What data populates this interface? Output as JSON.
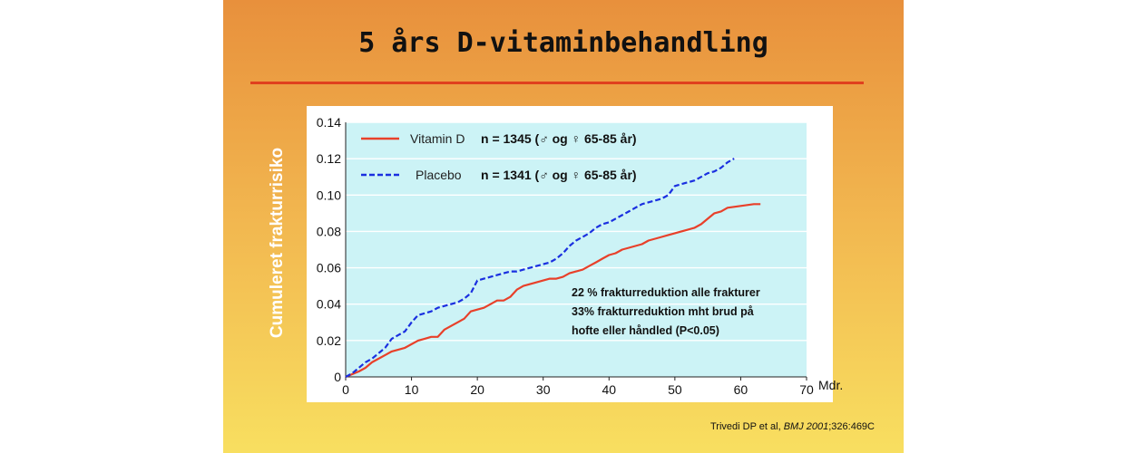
{
  "slide": {
    "title": "5 års D-vitaminbehandling",
    "y_axis_label": "Cumuleret frakturrisiko",
    "citation_author": "Trivedi DP et al, ",
    "citation_journal": "BMJ 2001",
    "citation_ref": ";326:469C"
  },
  "colors": {
    "vitamin_d": "#e8402a",
    "placebo": "#1a2fe0",
    "plot_bg": "#ccf3f6",
    "grid": "#ffffff"
  },
  "chart_data": {
    "type": "line",
    "title": "5 års D-vitaminbehandling",
    "xlabel": "Mdr.",
    "ylabel": "Cumuleret frakturrisiko",
    "xlim": [
      0,
      70
    ],
    "ylim": [
      0,
      0.14
    ],
    "x_ticks": [
      "0",
      "10",
      "20",
      "30",
      "40",
      "50",
      "60",
      "70"
    ],
    "y_ticks": [
      "0",
      "0.02",
      "0.04",
      "0.06",
      "0.08",
      "0.10",
      "0.12",
      "0.14"
    ],
    "grid": true,
    "legend_position": "top-left",
    "series": [
      {
        "name": "Vitamin D",
        "style": "solid",
        "n_label": "n = 1345 (♂ og ♀ 65-85 år)",
        "x": [
          0,
          2,
          3,
          4,
          5,
          6,
          7,
          8,
          9,
          10,
          11,
          12,
          13,
          14,
          15,
          16,
          17,
          18,
          19,
          20,
          21,
          22,
          23,
          24,
          25,
          26,
          27,
          28,
          29,
          30,
          31,
          32,
          33,
          34,
          35,
          36,
          37,
          38,
          39,
          40,
          41,
          42,
          43,
          44,
          45,
          46,
          47,
          48,
          49,
          50,
          51,
          52,
          53,
          54,
          55,
          56,
          57,
          58,
          60,
          62,
          63
        ],
        "values": [
          0,
          0.003,
          0.005,
          0.008,
          0.01,
          0.012,
          0.014,
          0.015,
          0.016,
          0.018,
          0.02,
          0.021,
          0.022,
          0.022,
          0.026,
          0.028,
          0.03,
          0.032,
          0.036,
          0.037,
          0.038,
          0.04,
          0.042,
          0.042,
          0.044,
          0.048,
          0.05,
          0.051,
          0.052,
          0.053,
          0.054,
          0.054,
          0.055,
          0.057,
          0.058,
          0.059,
          0.061,
          0.063,
          0.065,
          0.067,
          0.068,
          0.07,
          0.071,
          0.072,
          0.073,
          0.075,
          0.076,
          0.077,
          0.078,
          0.079,
          0.08,
          0.081,
          0.082,
          0.084,
          0.087,
          0.09,
          0.091,
          0.093,
          0.094,
          0.095,
          0.095
        ]
      },
      {
        "name": "Placebo",
        "style": "dashed",
        "n_label": "n = 1341 (♂ og ♀ 65-85 år)",
        "x": [
          0,
          1,
          2,
          3,
          4,
          5,
          6,
          7,
          8,
          9,
          10,
          11,
          12,
          13,
          14,
          15,
          16,
          17,
          18,
          19,
          20,
          21,
          22,
          23,
          24,
          25,
          26,
          27,
          28,
          29,
          30,
          31,
          32,
          33,
          34,
          35,
          36,
          37,
          38,
          39,
          40,
          41,
          42,
          43,
          44,
          45,
          46,
          47,
          48,
          49,
          50,
          51,
          52,
          53,
          54,
          55,
          56,
          57,
          58,
          59
        ],
        "values": [
          0,
          0.002,
          0.005,
          0.008,
          0.01,
          0.013,
          0.016,
          0.021,
          0.023,
          0.025,
          0.03,
          0.034,
          0.035,
          0.036,
          0.038,
          0.039,
          0.04,
          0.041,
          0.043,
          0.046,
          0.053,
          0.054,
          0.055,
          0.056,
          0.057,
          0.058,
          0.058,
          0.059,
          0.06,
          0.061,
          0.062,
          0.063,
          0.065,
          0.068,
          0.072,
          0.075,
          0.077,
          0.079,
          0.082,
          0.084,
          0.085,
          0.087,
          0.089,
          0.091,
          0.093,
          0.095,
          0.096,
          0.097,
          0.098,
          0.1,
          0.105,
          0.106,
          0.107,
          0.108,
          0.11,
          0.112,
          0.113,
          0.115,
          0.118,
          0.12
        ]
      }
    ],
    "annotations": [
      "22 % frakturreduktion alle frakturer",
      "33% frakturreduktion mht brud på",
      "hofte eller håndled (P<0.05)"
    ]
  }
}
